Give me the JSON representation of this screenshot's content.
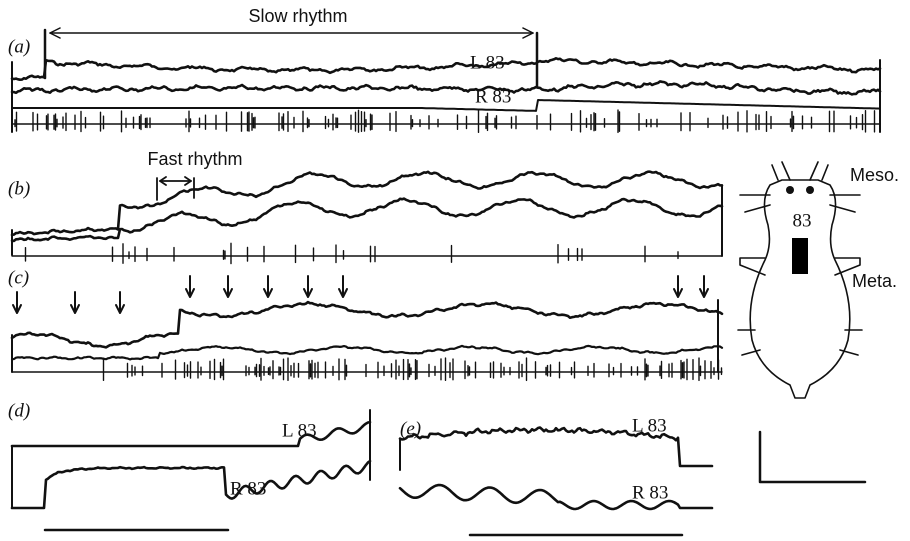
{
  "panels": [
    {
      "label": "(a)",
      "annotation": "Slow rhythm",
      "traces": [
        "L 83",
        "R 83"
      ]
    },
    {
      "label": "(b)",
      "annotation": "Fast rhythm"
    },
    {
      "label": "(c)"
    },
    {
      "label": "(d)",
      "traces": [
        "L 83",
        "R 83"
      ]
    },
    {
      "label": "(e)",
      "traces": [
        "L 83",
        "R 83"
      ]
    }
  ],
  "diagram": {
    "labels": [
      "Meso.",
      "83",
      "Meta."
    ]
  }
}
